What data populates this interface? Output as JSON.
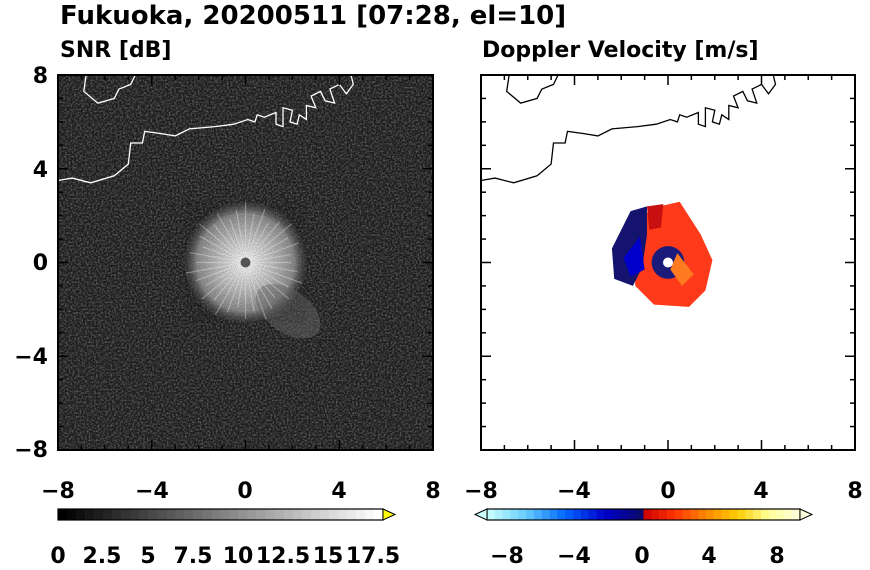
{
  "title": "Fukuoka, 20200511 [07:28, el=10]",
  "colors": {
    "snr_background": "#1c1c1c",
    "coastline_on_snr": "#ffffff",
    "coastline_on_doppler": "#000000"
  },
  "chart_data": [
    {
      "type": "heatmap",
      "panel": "left",
      "title": "SNR [dB]",
      "xlim": [
        -8,
        8
      ],
      "ylim": [
        -8,
        8
      ],
      "xticks": [
        "−8",
        "−4",
        "0",
        "4",
        "8"
      ],
      "yticks": [
        "8",
        "4",
        "0",
        "−4",
        "−8"
      ],
      "grid": false,
      "echo_center": [
        0,
        0
      ],
      "echo_radius_approx": 2.6,
      "colorbar": {
        "orientation": "horizontal",
        "min": 0,
        "max": 18,
        "step": 0.5,
        "extend": "max",
        "tick_labels": [
          "0",
          "2.5",
          "5",
          "7.5",
          "10",
          "12.5",
          "15",
          "17.5"
        ],
        "tick_values": [
          0,
          2.5,
          5,
          7.5,
          10,
          12.5,
          15,
          17.5
        ],
        "colors": [
          "#000000",
          "#ffffff"
        ],
        "extend_color": "#ffff00"
      }
    },
    {
      "type": "heatmap",
      "panel": "right",
      "title": "Doppler Velocity [m/s]",
      "xlim": [
        -8,
        8
      ],
      "ylim": [
        -8,
        8
      ],
      "xticks": [
        "−8",
        "−4",
        "0",
        "4",
        "8"
      ],
      "yticks": [
        "8",
        "4",
        "0",
        "−4",
        "−8"
      ],
      "grid": false,
      "echo_extent_approx": {
        "x": [
          -2.4,
          2.0
        ],
        "y": [
          -2.0,
          2.6
        ]
      },
      "colorbar": {
        "orientation": "horizontal",
        "min": -10,
        "max": 10,
        "step": 0.5,
        "extend": "both",
        "tick_labels": [
          "−8",
          "−4",
          "0",
          "4",
          "8"
        ],
        "tick_values": [
          -8,
          -4,
          0,
          4,
          8
        ],
        "colors": [
          "#ccffff",
          "#66ccff",
          "#0066ff",
          "#0000cc",
          "#0a0a66",
          "#cc0000",
          "#ff3300",
          "#ff8800",
          "#ffcc00",
          "#ffff99",
          "#ffffdd"
        ]
      }
    }
  ]
}
